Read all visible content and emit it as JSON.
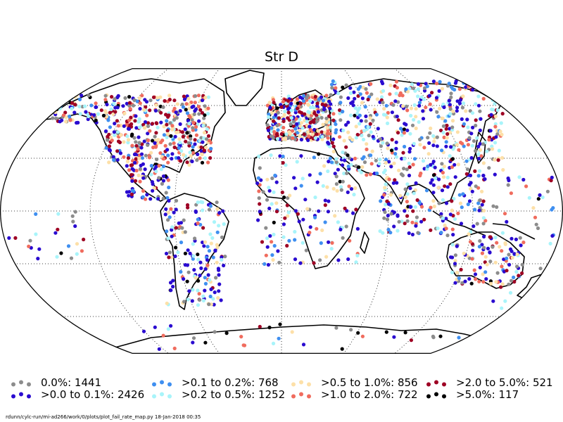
{
  "title": "Str D",
  "footer": "rdunn/cylc-run/mi-ad266/work/0/plots/plot_fail_rate_map.py   18-Jan-2018 00:35",
  "legend": [
    {
      "label": "0.0%: 1441",
      "color": "#8c8c8c"
    },
    {
      "label": ">0.0 to 0.1%: 2426",
      "color": "#2a0bd0"
    },
    {
      "label": ">0.1 to 0.2%: 768",
      "color": "#3f8ff0"
    },
    {
      "label": ">0.2 to 0.5%: 1252",
      "color": "#a8f4fa"
    },
    {
      "label": ">0.5 to 1.0%: 856",
      "color": "#fde0a8"
    },
    {
      "label": ">1.0 to 2.0%: 722",
      "color": "#f06c5e"
    },
    {
      "label": ">2.0 to 5.0%: 521",
      "color": "#9e0024"
    },
    {
      "label": ">5.0%: 117",
      "color": "#000000"
    }
  ],
  "map": {
    "projection": "robinson",
    "graticule": "dotted",
    "marker_colors": [
      "#8c8c8c",
      "#2a0bd0",
      "#3f8ff0",
      "#a8f4fa",
      "#fde0a8",
      "#f06c5e",
      "#9e0024",
      "#000000"
    ]
  }
}
